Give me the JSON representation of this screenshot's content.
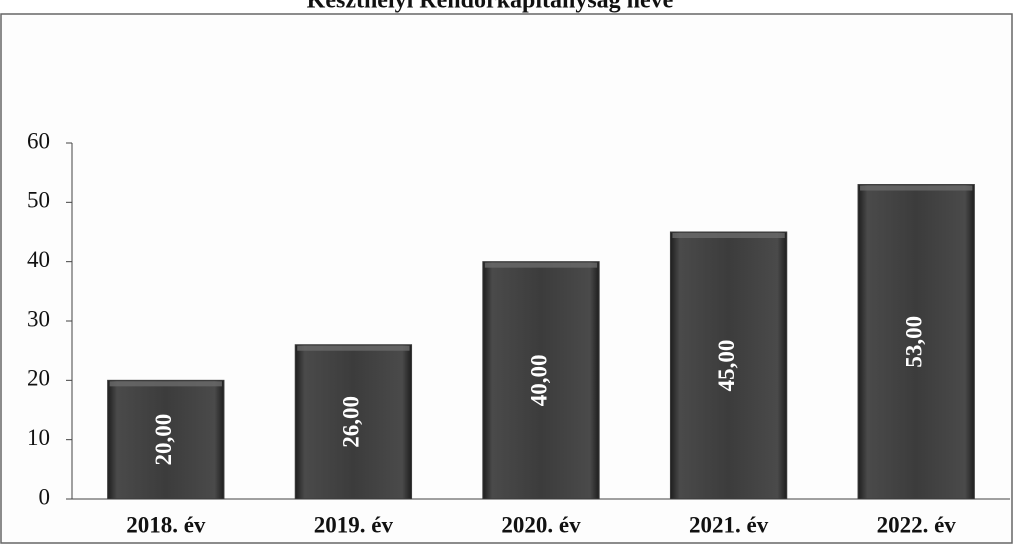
{
  "chart_data": {
    "type": "bar",
    "title": "Keszthelyi Rendőrkapitányság neve",
    "categories": [
      "2018. év",
      "2019. év",
      "2020. év",
      "2021. év",
      "2022. év"
    ],
    "values": [
      20,
      26,
      40,
      45,
      53
    ],
    "value_labels": [
      "20,00",
      "26,00",
      "40,00",
      "45,00",
      "53,00"
    ],
    "color": "#3b3b3b",
    "ylim": [
      0,
      60
    ],
    "yticks": [
      0,
      10,
      20,
      30,
      40,
      50,
      60
    ],
    "grid": false
  }
}
